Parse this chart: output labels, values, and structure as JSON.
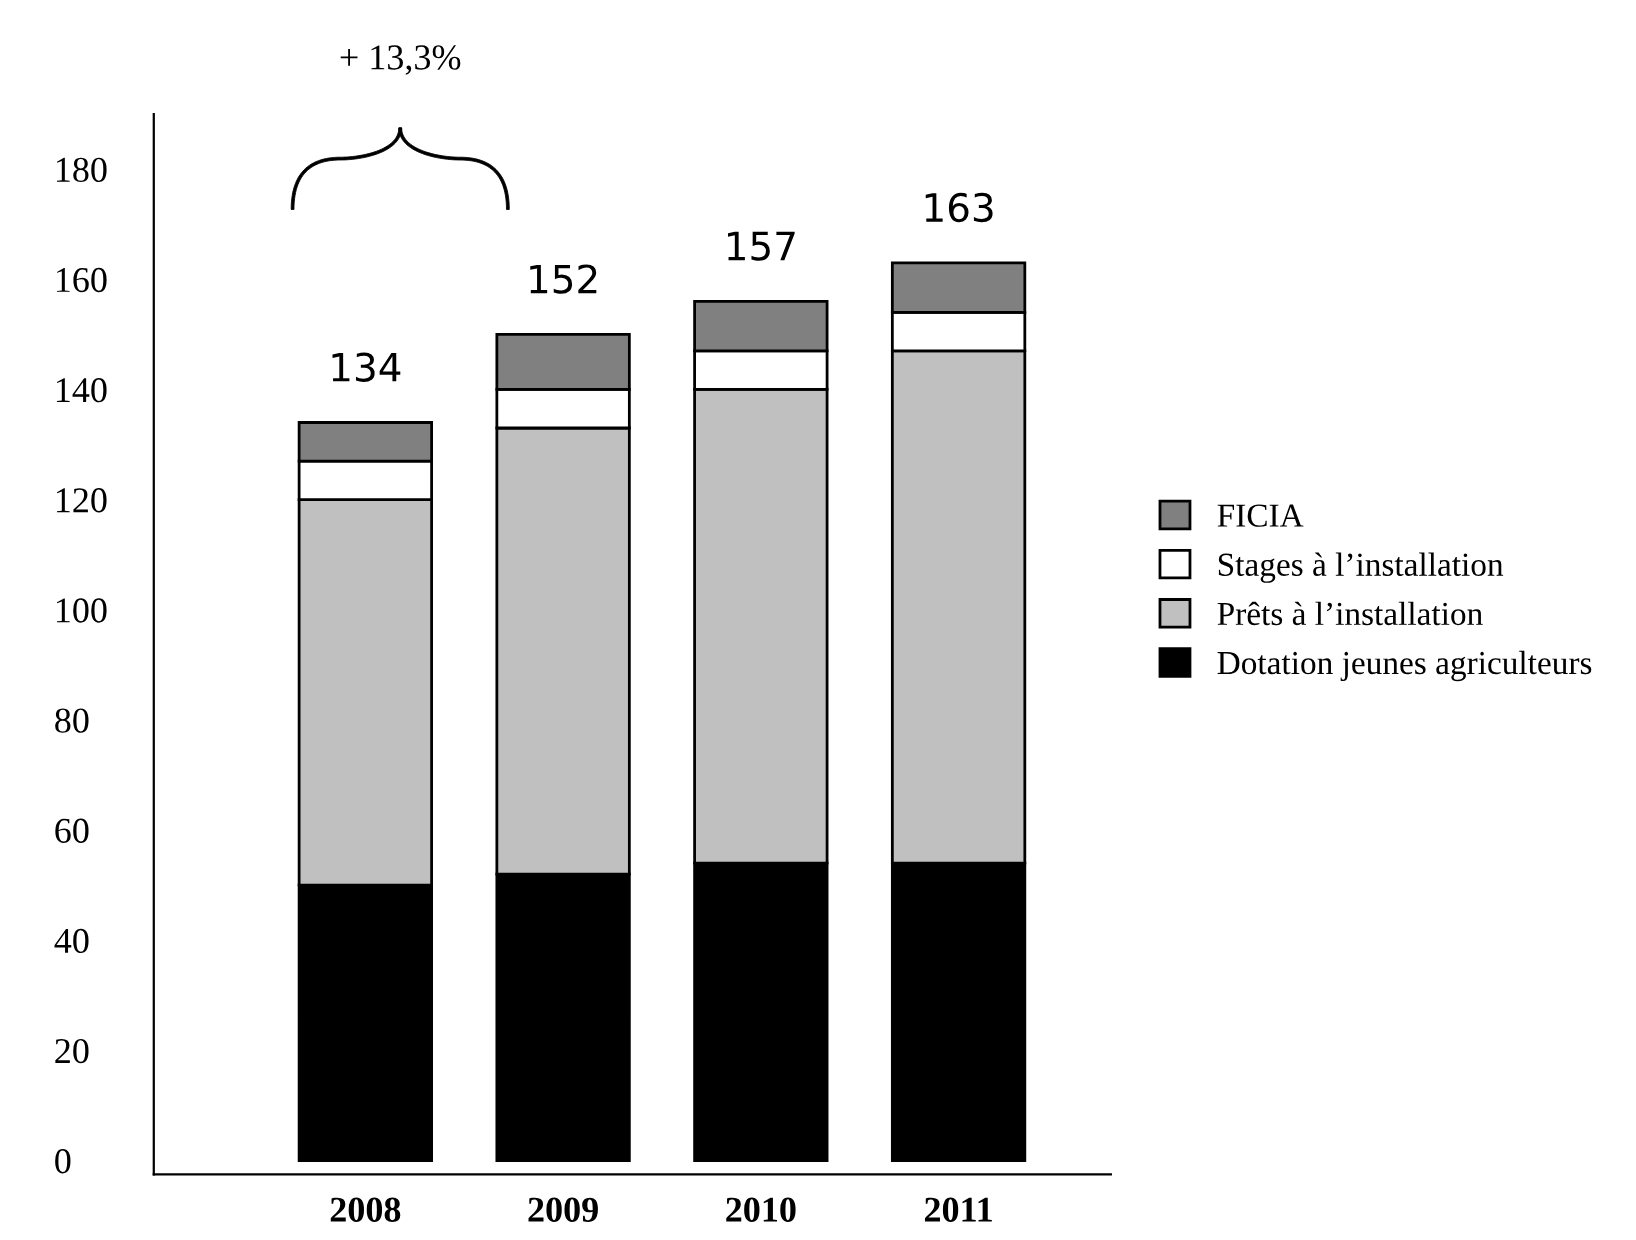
{
  "chart_data": {
    "type": "bar",
    "stacked": true,
    "categories": [
      "2008",
      "2009",
      "2010",
      "2011"
    ],
    "series": [
      {
        "name": "Dotation jeunes agriculteurs",
        "color": "#000000",
        "values": [
          50,
          52,
          54,
          54
        ]
      },
      {
        "name": "Prêts à l’installation",
        "color": "#c0c0c0",
        "values": [
          70,
          81,
          86,
          93
        ]
      },
      {
        "name": "Stages à l’installation",
        "color": "#ffffff",
        "values": [
          7,
          7,
          7,
          7
        ]
      },
      {
        "name": "FICIA",
        "color": "#808080",
        "values": [
          7,
          10,
          9,
          9
        ]
      }
    ],
    "totals": [
      "134",
      "152",
      "157",
      "163"
    ],
    "annotations": [
      "+ 13,3%"
    ],
    "ylim": [
      -2.5,
      190
    ],
    "yticks": [
      0,
      20,
      40,
      60,
      80,
      100,
      120,
      140,
      160,
      180
    ],
    "grid": false,
    "legend": "right"
  }
}
